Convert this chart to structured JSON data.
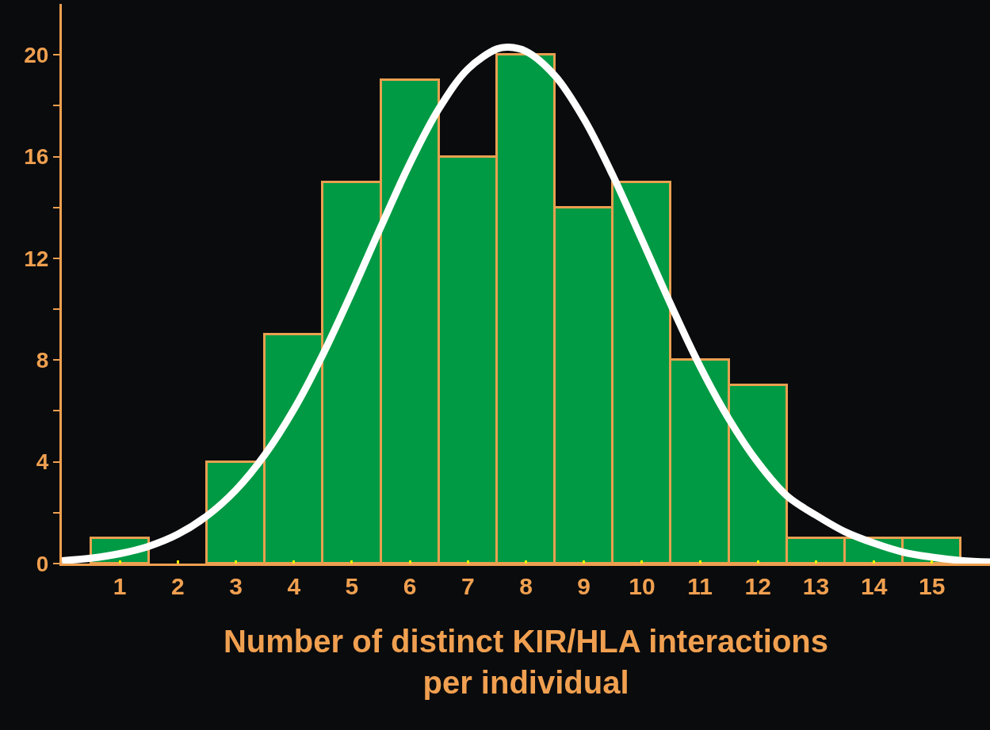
{
  "chart_data": {
    "type": "histogram",
    "xlabel": "Number of distinct KIR/HLA interactions per individual",
    "bins": [
      0.5,
      1.5,
      2.5,
      3.5,
      4.5,
      5.5,
      6.5,
      7.5,
      8.5,
      9.5,
      10.5,
      11.5,
      12.5,
      13.5,
      14.5,
      15.5
    ],
    "series": [
      {
        "color": "#009a44",
        "values": [
          1,
          0,
          4,
          9,
          15,
          19,
          16,
          20,
          14,
          15,
          8,
          7,
          1,
          1,
          1
        ]
      },
      {
        "type": "line",
        "color": "#ffffff",
        "x": [
          0,
          0.5,
          1,
          1.5,
          2,
          2.5,
          3,
          3.5,
          4,
          4.5,
          5,
          5.5,
          6,
          6.5,
          7,
          7.5,
          7.7,
          8,
          8.5,
          9,
          9.5,
          10,
          10.5,
          11,
          11.5,
          12,
          12.5,
          13,
          13.5,
          14,
          14.5,
          15,
          15.5,
          16
        ],
        "values": [
          0.11,
          0.21,
          0.39,
          0.68,
          1.15,
          1.87,
          2.89,
          4.28,
          6.06,
          8.22,
          10.67,
          13.24,
          15.73,
          17.88,
          19.44,
          20.23,
          20.3,
          20.14,
          19.18,
          17.48,
          15.25,
          12.73,
          10.17,
          7.76,
          5.68,
          3.97,
          2.66,
          1.9,
          1.25,
          0.8,
          0.45,
          0.25,
          0.12,
          0.06
        ]
      }
    ],
    "xlim": [
      0,
      16
    ],
    "xticks": [
      1,
      2,
      3,
      4,
      5,
      6,
      7,
      8,
      9,
      10,
      11,
      12,
      13,
      14,
      15
    ],
    "ylim": [
      0,
      22
    ],
    "yticks": [
      0,
      {
        "value": 2,
        "label": null
      },
      4,
      {
        "value": 6,
        "label": null
      },
      8,
      {
        "value": 10,
        "label": null
      },
      12,
      {
        "value": 14,
        "label": null
      },
      16,
      {
        "value": 18,
        "label": null
      },
      20
    ],
    "legend": false
  }
}
